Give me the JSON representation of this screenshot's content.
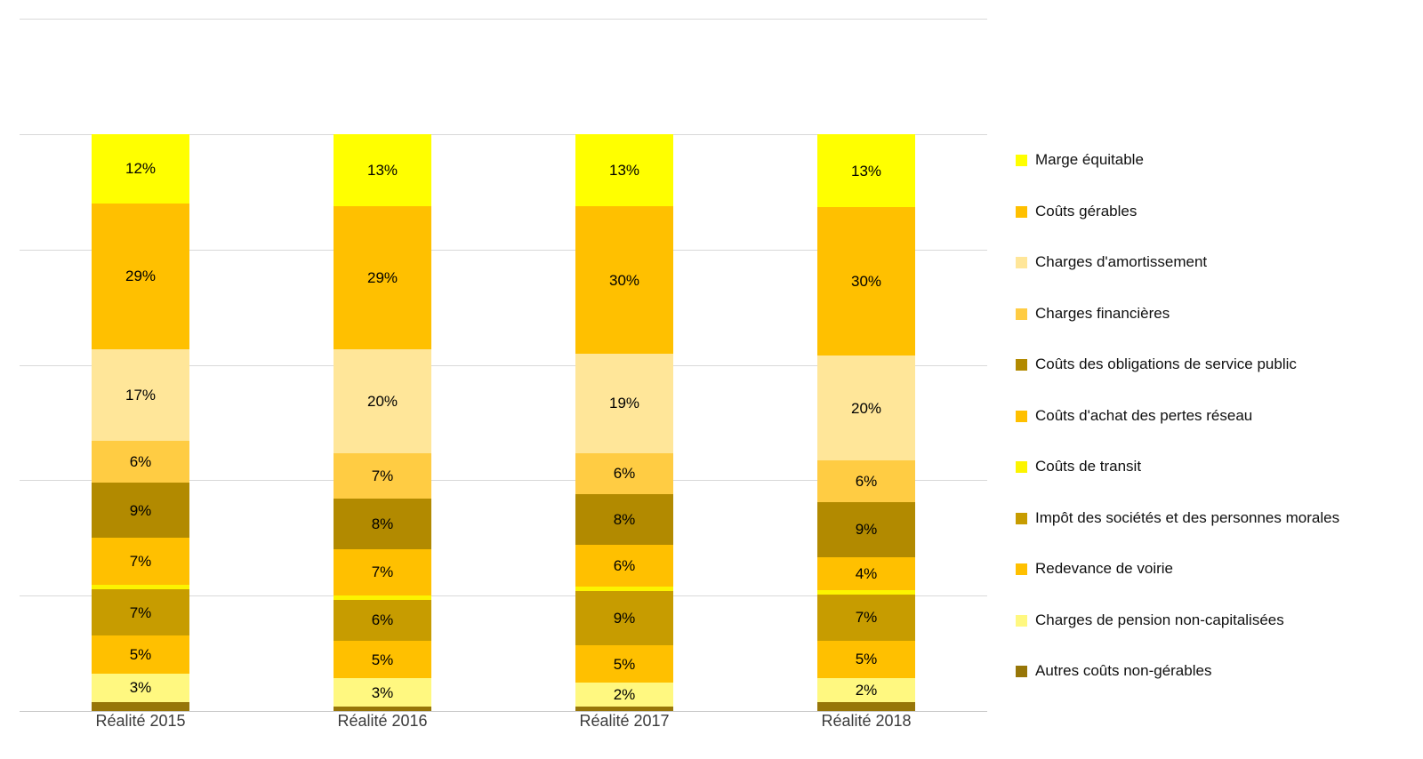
{
  "chart_data": {
    "type": "bar",
    "subtype": "percent-stacked-column",
    "title": "",
    "xlabel": "",
    "ylabel": "",
    "categories": [
      "Réalité 2015",
      "Réalité 2016",
      "Réalité 2017",
      "Réalité 2018"
    ],
    "series": [
      {
        "name": "Marge équitable",
        "color": "#FFFF00",
        "values": [
          12,
          13,
          13,
          13
        ],
        "labels": [
          "12%",
          "13%",
          "13%",
          "13%"
        ]
      },
      {
        "name": "Coûts gérables",
        "color": "#FFC000",
        "values": [
          29,
          29,
          30,
          30
        ],
        "labels": [
          "29%",
          "29%",
          "30%",
          "30%"
        ]
      },
      {
        "name": "Charges d'amortissement",
        "color": "#FFE699",
        "values": [
          17,
          20,
          19,
          20
        ],
        "labels": [
          "17%",
          "20%",
          "19%",
          "20%"
        ]
      },
      {
        "name": "Charges financières",
        "color": "#FFCC43",
        "values": [
          6,
          7,
          6,
          6
        ],
        "labels": [
          "6%",
          "7%",
          "6%",
          "6%"
        ]
      },
      {
        "name": "Coûts des obligations de service public",
        "color": "#B28A00",
        "values": [
          9,
          8,
          8,
          9
        ],
        "labels": [
          "9%",
          "8%",
          "8%",
          "9%"
        ]
      },
      {
        "name": "Coûts d'achat des pertes réseau",
        "color": "#FFC000",
        "values": [
          7,
          7,
          6,
          4
        ],
        "labels": [
          "7%",
          "7%",
          "6%",
          "4%"
        ]
      },
      {
        "name": "Coûts de transit",
        "color": "#FCF400",
        "values": [
          1,
          1,
          1,
          1
        ],
        "labels": [
          "",
          "",
          "",
          ""
        ]
      },
      {
        "name": "Impôt des sociétés et des personnes morales",
        "color": "#C79C00",
        "values": [
          7,
          6,
          9,
          7
        ],
        "labels": [
          "7%",
          "6%",
          "9%",
          "7%"
        ]
      },
      {
        "name": "Redevance de voirie",
        "color": "#FFC000",
        "values": [
          5,
          5,
          5,
          5
        ],
        "labels": [
          "5%",
          "5%",
          "5%",
          "5%"
        ]
      },
      {
        "name": "Charges de pension non-capitalisées",
        "color": "#FFF880",
        "values": [
          3,
          3,
          2,
          2
        ],
        "labels": [
          "3%",
          "3%",
          "2%",
          "2%"
        ]
      },
      {
        "name": "Autres coûts non-gérables",
        "color": "#977608",
        "values": [
          2,
          1,
          1,
          2
        ],
        "labels": [
          "",
          "",
          "",
          ""
        ]
      }
    ],
    "ylim": [
      0,
      120
    ],
    "gridlines_pct": [
      0,
      20,
      40,
      60,
      80,
      100,
      120
    ],
    "grid": true,
    "legend_position": "right",
    "colors": {
      "gridline": "#D9D9D9",
      "baseline": "#C9C9C9",
      "data_label_text": "#000000",
      "category_label_text": "#3B3B3B"
    }
  }
}
